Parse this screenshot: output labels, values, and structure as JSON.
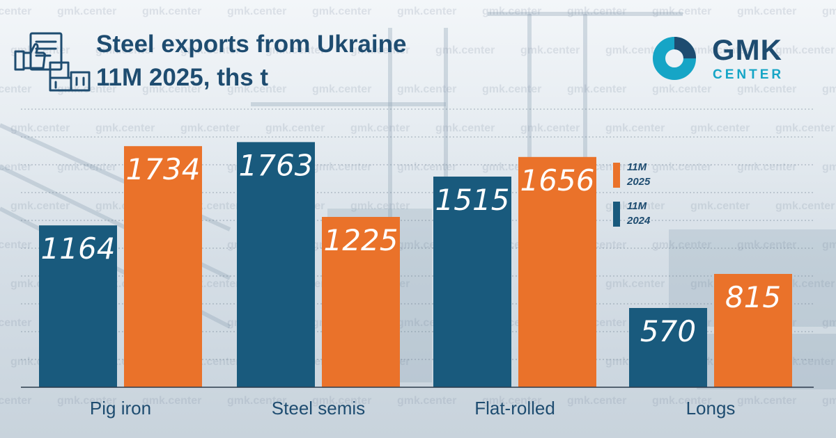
{
  "watermark": "gmk.center",
  "header": {
    "title_line1": "Steel exports from Ukraine",
    "title_line2": "11M 2025, ths t",
    "icon": "export-boxes-thumbs-up-icon"
  },
  "logo": {
    "top": "GMK",
    "bottom": "CENTER",
    "icon": "gmk-ring-logo-icon"
  },
  "legend": [
    {
      "line1": "11M",
      "line2": "2025"
    },
    {
      "line1": "11M",
      "line2": "2024"
    }
  ],
  "colors": {
    "series_2024": "#195a7d",
    "series_2025": "#ea722a",
    "title": "#1e4c70",
    "accent": "#16a5c6"
  },
  "chart_data": {
    "type": "bar",
    "title": "Steel exports from Ukraine 11M 2025, ths t",
    "categories": [
      "Pig iron",
      "Steel semis",
      "Flat-rolled",
      "Longs"
    ],
    "series": [
      {
        "name": "11M 2024",
        "values": [
          1164,
          1763,
          1515,
          570
        ]
      },
      {
        "name": "11M 2025",
        "values": [
          1734,
          1225,
          1656,
          815
        ]
      }
    ],
    "ylim": [
      0,
      2000
    ],
    "grid": true,
    "legend_position": "right"
  }
}
